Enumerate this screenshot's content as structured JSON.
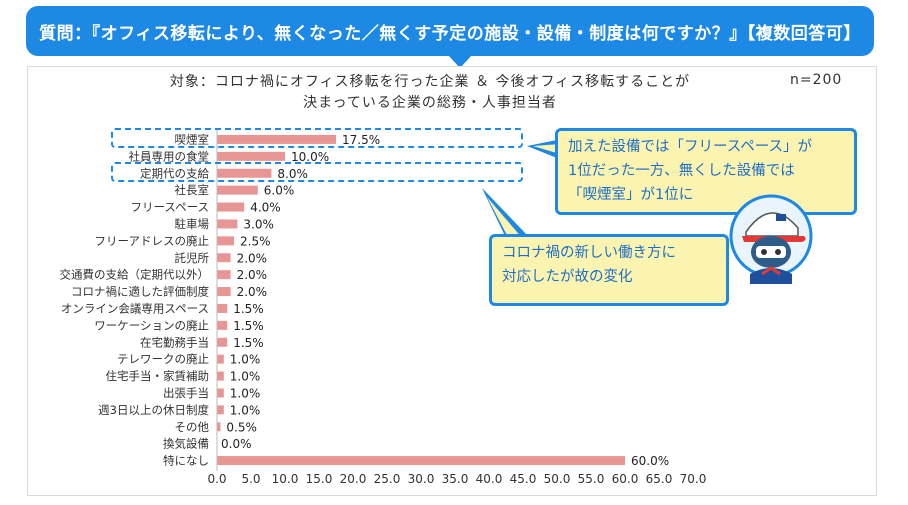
{
  "header": {
    "question": "質問：『オフィス移転により、無くなった／無くす予定の施設・設備・制度は何ですか？』【複数回答可】"
  },
  "chart_header": {
    "title_line1": "対象：コロナ禍にオフィス移転を行った企業 ＆ 今後オフィス移転することが",
    "title_line2": "決まっている企業の総務・人事担当者",
    "sample_size": "n=200"
  },
  "callouts": {
    "first": {
      "line1": "加えた設備では「フリースペース」が",
      "line2": "1位だった一方、無くした設備では",
      "line3": "「喫煙室」が1位に"
    },
    "second": {
      "line1": "コロナ禍の新しい働き方に",
      "line2": "対応したが故の変化"
    }
  },
  "colors": {
    "bar": "#e89595",
    "accent": "#1e88e5",
    "callout_bg": "#fbf3b0"
  },
  "chart_data": {
    "type": "bar",
    "orientation": "horizontal",
    "categories": [
      "喫煙室",
      "社員専用の食堂",
      "定期代の支給",
      "社長室",
      "フリースペース",
      "駐車場",
      "フリーアドレスの廃止",
      "託児所",
      "交通費の支給（定期代以外）",
      "コロナ禍に適した評価制度",
      "オンライン会議専用スペース",
      "ワーケーションの廃止",
      "在宅勤務手当",
      "テレワークの廃止",
      "住宅手当・家賃補助",
      "出張手当",
      "週3日以上の休日制度",
      "その他",
      "換気設備",
      "特になし"
    ],
    "values": [
      17.5,
      10.0,
      8.0,
      6.0,
      4.0,
      3.0,
      2.5,
      2.0,
      2.0,
      2.0,
      1.5,
      1.5,
      1.5,
      1.0,
      1.0,
      1.0,
      1.0,
      0.5,
      0.0,
      60.0
    ],
    "value_labels": [
      "17.5%",
      "10.0%",
      "8.0%",
      "6.0%",
      "4.0%",
      "3.0%",
      "2.5%",
      "2.0%",
      "2.0%",
      "2.0%",
      "1.5%",
      "1.5%",
      "1.5%",
      "1.0%",
      "1.0%",
      "1.0%",
      "1.0%",
      "0.5%",
      "0.0%",
      "60.0%"
    ],
    "xlim": [
      0,
      70
    ],
    "xticks": [
      "0.0",
      "5.0",
      "10.0",
      "15.0",
      "20.0",
      "25.0",
      "30.0",
      "35.0",
      "40.0",
      "45.0",
      "50.0",
      "55.0",
      "60.0",
      "65.0",
      "70.0"
    ],
    "unit": "%",
    "highlighted": [
      "喫煙室",
      "定期代の支給"
    ]
  }
}
